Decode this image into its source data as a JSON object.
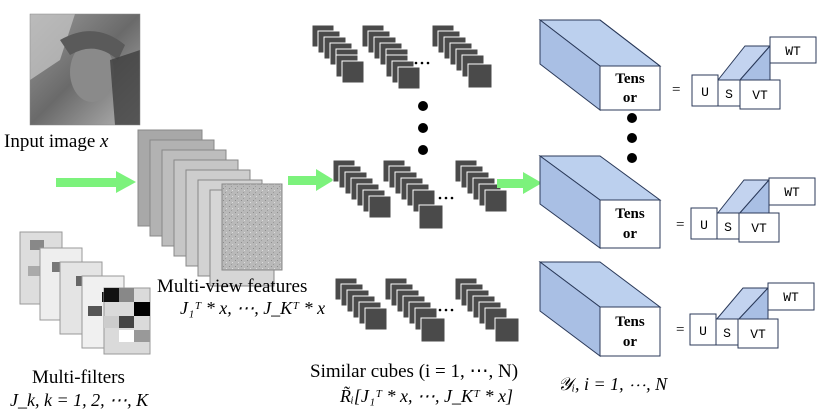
{
  "input_label": "Input image",
  "input_var": "x",
  "multiview_label": "Multi-view features",
  "multiview_math": "J₁ᵀ * x, ⋯, J_Kᵀ * x",
  "filters_label": "Multi-filters",
  "filters_math": "J_k, k = 1, 2, ⋯, K",
  "similar_label": "Similar cubes (i = 1, ⋯, N)",
  "similar_math": "R̃ᵢ[J₁ᵀ * x, ⋯, J_Kᵀ * x]",
  "tensor_math": "𝒴ᵢ,  i = 1, ⋯, N",
  "tensor_label_top": "Tens",
  "tensor_label_bottom": "or",
  "equals": "=",
  "svd_u": "U",
  "svd_s": "S",
  "svd_vt": "VT",
  "svd_wt": "WT",
  "colors": {
    "arrow": "#7cf27c",
    "tensor_fill": "#bcd0ee",
    "tensor_stroke": "#2b3a5a",
    "cube": "#4a4a4a",
    "svd_fill": "#c3d3ef"
  }
}
